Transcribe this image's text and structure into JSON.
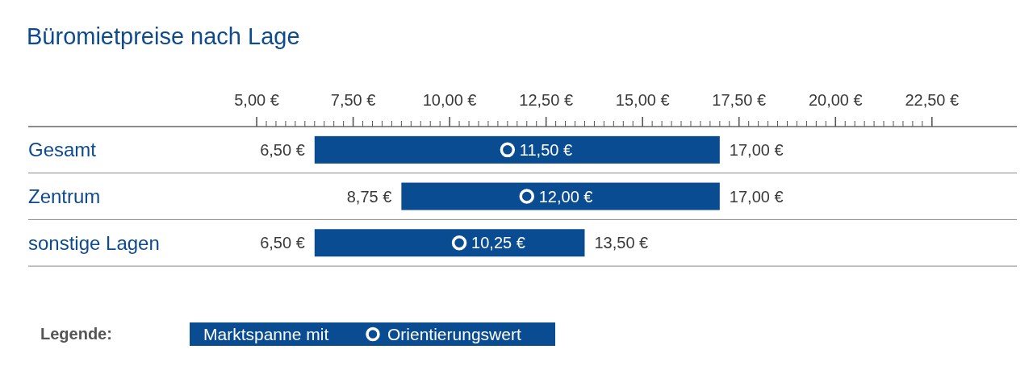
{
  "chart_data": {
    "type": "bar",
    "orientation": "horizontal",
    "title": "Büromietpreise nach Lage",
    "categories": [
      "Gesamt",
      "Zentrum",
      "sonstige Lagen"
    ],
    "series": [
      {
        "name": "Marktspanne mit",
        "type": "bar",
        "color": "#0a4c91",
        "base": [
          6.5,
          8.75,
          6.5
        ],
        "values": [
          10.5,
          8.25,
          7.0
        ]
      },
      {
        "name": "Orientierungswert",
        "type": "scatter",
        "color": "#ffffff",
        "marker": "circle",
        "values": [
          11.5,
          12.0,
          10.25
        ],
        "value_labels": [
          "11,50 €",
          "12,00 €",
          "10,25 €"
        ]
      }
    ],
    "annotations": [
      {
        "text": "6,50 €",
        "x": 6.5,
        "y": "Gesamt"
      },
      {
        "text": "17,00 €",
        "x": 17.0,
        "y": "Gesamt"
      },
      {
        "text": "8,75 €",
        "x": 8.75,
        "y": "Zentrum"
      },
      {
        "text": "17,00 €",
        "x": 17.0,
        "y": "Zentrum"
      },
      {
        "text": "6,50 €",
        "x": 6.5,
        "y": "sonstige Lagen"
      },
      {
        "text": "13,50 €",
        "x": 13.5,
        "y": "sonstige Lagen"
      }
    ],
    "xlim": [
      -0.92,
      24.7
    ],
    "xticks": [
      {
        "value": 5,
        "label": "5,00 €"
      },
      {
        "value": 7.5,
        "label": "7,50 €"
      },
      {
        "value": 10,
        "label": "10,00 €"
      },
      {
        "value": 12.5,
        "label": "12,50 €"
      },
      {
        "value": 15,
        "label": "15,00 €"
      },
      {
        "value": 17.5,
        "label": "17,50 €"
      },
      {
        "value": 20,
        "label": "20,00 €"
      },
      {
        "value": 22.5,
        "label": "22,50 €"
      },
      {
        "value": 5.25,
        "label": null
      },
      {
        "value": 5.5,
        "label": null
      },
      {
        "value": 5.75,
        "label": null
      },
      {
        "value": 6,
        "label": null
      },
      {
        "value": 6.25,
        "label": null
      },
      {
        "value": 6.5,
        "label": null
      },
      {
        "value": 6.75,
        "label": null
      },
      {
        "value": 7,
        "label": null
      },
      {
        "value": 7.25,
        "label": null
      },
      {
        "value": 7.75,
        "label": null
      },
      {
        "value": 8,
        "label": null
      },
      {
        "value": 8.25,
        "label": null
      },
      {
        "value": 8.5,
        "label": null
      },
      {
        "value": 8.75,
        "label": null
      },
      {
        "value": 9,
        "label": null
      },
      {
        "value": 9.25,
        "label": null
      },
      {
        "value": 9.5,
        "label": null
      },
      {
        "value": 9.75,
        "label": null
      },
      {
        "value": 10.25,
        "label": null
      },
      {
        "value": 10.5,
        "label": null
      },
      {
        "value": 10.75,
        "label": null
      },
      {
        "value": 11,
        "label": null
      },
      {
        "value": 11.25,
        "label": null
      },
      {
        "value": 11.5,
        "label": null
      },
      {
        "value": 11.75,
        "label": null
      },
      {
        "value": 12,
        "label": null
      },
      {
        "value": 12.25,
        "label": null
      },
      {
        "value": 12.75,
        "label": null
      },
      {
        "value": 13,
        "label": null
      },
      {
        "value": 13.25,
        "label": null
      },
      {
        "value": 13.5,
        "label": null
      },
      {
        "value": 13.75,
        "label": null
      },
      {
        "value": 14,
        "label": null
      },
      {
        "value": 14.25,
        "label": null
      },
      {
        "value": 14.5,
        "label": null
      },
      {
        "value": 14.75,
        "label": null
      },
      {
        "value": 15.25,
        "label": null
      },
      {
        "value": 15.5,
        "label": null
      },
      {
        "value": 15.75,
        "label": null
      },
      {
        "value": 16,
        "label": null
      },
      {
        "value": 16.25,
        "label": null
      },
      {
        "value": 16.5,
        "label": null
      },
      {
        "value": 16.75,
        "label": null
      },
      {
        "value": 17,
        "label": null
      },
      {
        "value": 17.25,
        "label": null
      },
      {
        "value": 17.75,
        "label": null
      },
      {
        "value": 18,
        "label": null
      },
      {
        "value": 18.25,
        "label": null
      },
      {
        "value": 18.5,
        "label": null
      },
      {
        "value": 18.75,
        "label": null
      },
      {
        "value": 19,
        "label": null
      },
      {
        "value": 19.25,
        "label": null
      },
      {
        "value": 19.5,
        "label": null
      },
      {
        "value": 19.75,
        "label": null
      },
      {
        "value": 20.25,
        "label": null
      },
      {
        "value": 20.5,
        "label": null
      },
      {
        "value": 20.75,
        "label": null
      },
      {
        "value": 21,
        "label": null
      },
      {
        "value": 21.25,
        "label": null
      },
      {
        "value": 21.5,
        "label": null
      },
      {
        "value": 21.75,
        "label": null
      },
      {
        "value": 22,
        "label": null
      },
      {
        "value": 22.25,
        "label": null
      }
    ],
    "legend": "bottom left",
    "legend_title": "Legende:"
  }
}
